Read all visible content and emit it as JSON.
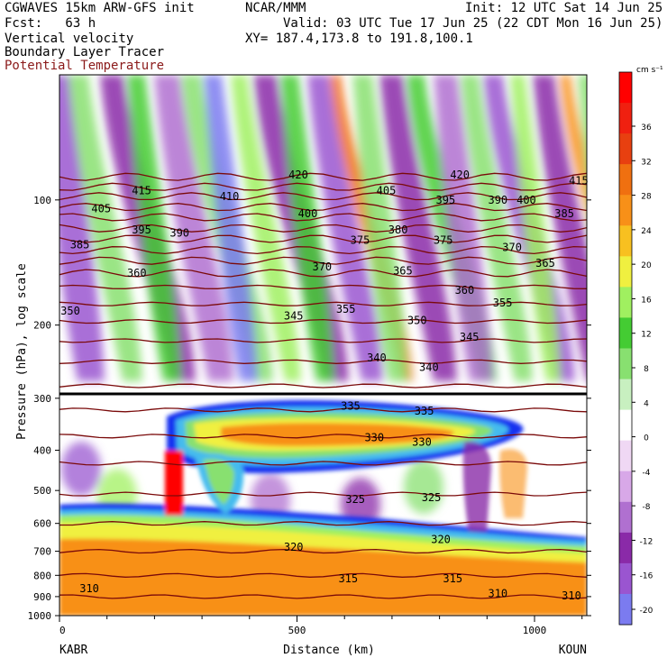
{
  "header": {
    "model": "CGWAVES 15km ARW-GFS init",
    "org": "NCAR/MMM",
    "init": "Init: 12 UTC Sat 14 Jun 25",
    "fcst": "Fcst:   63 h",
    "valid": "Valid: 03 UTC Tue 17 Jun 25 (22 CDT Mon 16 Jun 25)",
    "field1": "Vertical velocity",
    "xy": "XY= 187.4,173.8 to 191.8,100.1",
    "field2": "Boundary Layer Tracer",
    "field3": "Potential Temperature"
  },
  "colors": {
    "theta_contour": "#7a0a0a",
    "shading": [
      "#7b7bf0",
      "#9a55d0",
      "#8a2aa8",
      "#b070d0",
      "#d8a8e8",
      "#f0d8f4",
      "#ffffff",
      "#c8f0c0",
      "#88e070",
      "#44cc33",
      "#a0f060",
      "#f0f040",
      "#f8c020",
      "#f89018",
      "#f07010",
      "#e84010",
      "#f02010",
      "#ff0000"
    ]
  },
  "chart_data": {
    "type": "heatmap",
    "xlabel": "Distance (km)",
    "ylabel": "Pressure (hPa), log scale",
    "x_ticks": [
      0,
      500,
      1000
    ],
    "y_ticks": [
      100,
      200,
      300,
      400,
      500,
      600,
      700,
      800,
      900,
      1000
    ],
    "xlim": [
      0,
      1110
    ],
    "ylim_hpa": [
      1000,
      50
    ],
    "y_scale": "log",
    "left_endpoint": "KABR",
    "right_endpoint": "KOUN",
    "colorbar": {
      "unit": "cm s⁻¹",
      "ticks": [
        36,
        32,
        28,
        24,
        20,
        16,
        12,
        8,
        4,
        0,
        -4,
        -8,
        -12,
        -16,
        -20
      ]
    },
    "theta_labels": [
      {
        "v": "420",
        "x": 480,
        "p": 87
      },
      {
        "v": "420",
        "x": 820,
        "p": 87
      },
      {
        "v": "415",
        "x": 150,
        "p": 95
      },
      {
        "v": "415",
        "x": 1070,
        "p": 90
      },
      {
        "v": "410",
        "x": 335,
        "p": 98
      },
      {
        "v": "405",
        "x": 65,
        "p": 105
      },
      {
        "v": "405",
        "x": 665,
        "p": 95
      },
      {
        "v": "400",
        "x": 500,
        "p": 108
      },
      {
        "v": "400",
        "x": 960,
        "p": 100
      },
      {
        "v": "395",
        "x": 150,
        "p": 118
      },
      {
        "v": "395",
        "x": 790,
        "p": 100
      },
      {
        "v": "390",
        "x": 230,
        "p": 120
      },
      {
        "v": "390",
        "x": 900,
        "p": 100
      },
      {
        "v": "385",
        "x": 20,
        "p": 128
      },
      {
        "v": "385",
        "x": 1040,
        "p": 108
      },
      {
        "v": "380",
        "x": 690,
        "p": 118
      },
      {
        "v": "375",
        "x": 610,
        "p": 125
      },
      {
        "v": "375",
        "x": 785,
        "p": 125
      },
      {
        "v": "370",
        "x": 530,
        "p": 145
      },
      {
        "v": "370",
        "x": 930,
        "p": 130
      },
      {
        "v": "365",
        "x": 700,
        "p": 148
      },
      {
        "v": "365",
        "x": 1000,
        "p": 142
      },
      {
        "v": "360",
        "x": 140,
        "p": 150
      },
      {
        "v": "360",
        "x": 830,
        "p": 165
      },
      {
        "v": "355",
        "x": 580,
        "p": 183
      },
      {
        "v": "355",
        "x": 910,
        "p": 177
      },
      {
        "v": "350",
        "x": 0,
        "p": 185
      },
      {
        "v": "350",
        "x": 730,
        "p": 195
      },
      {
        "v": "345",
        "x": 470,
        "p": 190
      },
      {
        "v": "345",
        "x": 840,
        "p": 214
      },
      {
        "v": "340",
        "x": 645,
        "p": 240
      },
      {
        "v": "340",
        "x": 755,
        "p": 253
      },
      {
        "v": "335",
        "x": 590,
        "p": 313
      },
      {
        "v": "335",
        "x": 745,
        "p": 322
      },
      {
        "v": "330",
        "x": 640,
        "p": 373
      },
      {
        "v": "330",
        "x": 740,
        "p": 382
      },
      {
        "v": "325",
        "x": 600,
        "p": 525
      },
      {
        "v": "325",
        "x": 760,
        "p": 520
      },
      {
        "v": "320",
        "x": 470,
        "p": 685
      },
      {
        "v": "320",
        "x": 780,
        "p": 655
      },
      {
        "v": "315",
        "x": 585,
        "p": 815
      },
      {
        "v": "315",
        "x": 805,
        "p": 815
      },
      {
        "v": "310",
        "x": 40,
        "p": 860
      },
      {
        "v": "310",
        "x": 900,
        "p": 885
      },
      {
        "v": "310",
        "x": 1055,
        "p": 895
      }
    ]
  }
}
